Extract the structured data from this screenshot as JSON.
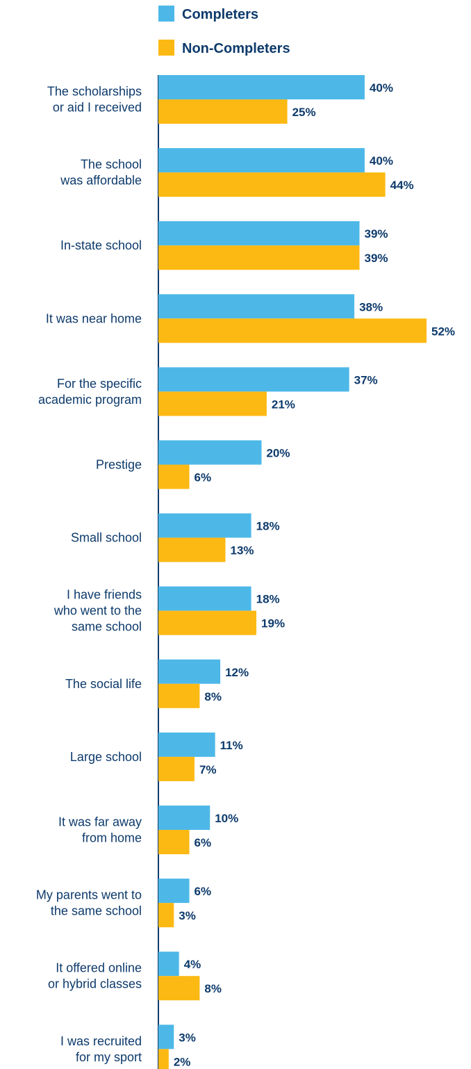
{
  "chart_data": {
    "type": "bar",
    "orientation": "horizontal",
    "value_suffix": "%",
    "legend_position": "top",
    "grid": false,
    "xlim": [
      0,
      52
    ],
    "categories": [
      [
        "The scholarships",
        "or aid I received"
      ],
      [
        "The school",
        "was affordable"
      ],
      [
        "In-state school"
      ],
      [
        "It was near home"
      ],
      [
        "For the specific",
        "academic program"
      ],
      [
        "Prestige"
      ],
      [
        "Small school"
      ],
      [
        "I have friends",
        "who went to the",
        "same school"
      ],
      [
        "The social life"
      ],
      [
        "Large school"
      ],
      [
        "It was far away",
        "from home"
      ],
      [
        "My parents went to",
        "the same school"
      ],
      [
        "It offered online",
        "or hybrid classes"
      ],
      [
        "I was recruited",
        "for my sport"
      ]
    ],
    "series": [
      {
        "name": "Completers",
        "color": "#4db8e8",
        "values": [
          40,
          40,
          39,
          38,
          37,
          20,
          18,
          18,
          12,
          11,
          10,
          6,
          4,
          3
        ]
      },
      {
        "name": "Non-Completers",
        "color": "#fdb913",
        "values": [
          25,
          44,
          39,
          52,
          21,
          6,
          13,
          19,
          8,
          7,
          6,
          3,
          8,
          2
        ]
      }
    ]
  }
}
